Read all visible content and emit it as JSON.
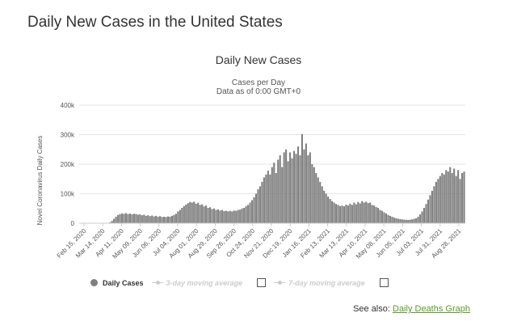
{
  "page": {
    "heading": "Daily New Cases in the United States"
  },
  "see_also": {
    "label": "See also:",
    "link_text": "Daily Deaths Graph"
  },
  "legend": {
    "daily_cases": "Daily Cases",
    "moving3": "3-day moving average",
    "moving7": "7-day moving average"
  },
  "colors": {
    "bar": "#7f7f7f",
    "grid": "#e6e6e6",
    "link": "#5b9a2b",
    "inactive": "#cccccc"
  },
  "chart_data": {
    "type": "bar",
    "title": "Daily New Cases",
    "subtitle": "Cases per Day",
    "subtitle2": "Data as of 0:00 GMT+0",
    "ylabel": "Novel Coronavirus Daily Cases",
    "xlabel": "",
    "ylim": [
      0,
      400000
    ],
    "y_ticks": [
      "0",
      "100k",
      "200k",
      "300k",
      "400k"
    ],
    "y_tick_values": [
      0,
      100000,
      200000,
      300000,
      400000
    ],
    "x_tick_labels": [
      "Feb 15, 2020",
      "Mar 14, 2020",
      "Apr 11, 2020",
      "May 09, 2020",
      "Jun 06, 2020",
      "Jul 04, 2020",
      "Aug 01, 2020",
      "Aug 29, 2020",
      "Sep 26, 2020",
      "Oct 24, 2020",
      "Nov 21, 2020",
      "Dec 19, 2020",
      "Jan 16, 2021",
      "Feb 13, 2021",
      "Mar 13, 2021",
      "Apr 10, 2021",
      "May 08, 2021",
      "Jun 05, 2021",
      "Jul 03, 2021",
      "Jul 31, 2021",
      "Aug 28, 2021"
    ],
    "grid": true,
    "legend_position": "bottom",
    "series": [
      {
        "name": "Daily Cases",
        "x_start": "Feb 15, 2020",
        "x_step_days": 2,
        "values": [
          0,
          0,
          0,
          0,
          0,
          0,
          0,
          0,
          0,
          0,
          0,
          0,
          0,
          0,
          1000,
          3000,
          8000,
          15000,
          22000,
          28000,
          31000,
          33000,
          32000,
          34000,
          31000,
          33000,
          30000,
          32000,
          31000,
          29000,
          30000,
          27000,
          29000,
          25000,
          27000,
          24000,
          26000,
          23000,
          25000,
          22000,
          24000,
          21000,
          22000,
          21000,
          23000,
          22000,
          25000,
          28000,
          32000,
          40000,
          45000,
          52000,
          58000,
          63000,
          68000,
          72000,
          70000,
          73000,
          66000,
          69000,
          62000,
          64000,
          57000,
          60000,
          52000,
          54000,
          48000,
          50000,
          45000,
          47000,
          43000,
          45000,
          41000,
          42000,
          40000,
          42000,
          40000,
          43000,
          42000,
          45000,
          46000,
          50000,
          52000,
          58000,
          62000,
          70000,
          78000,
          88000,
          100000,
          115000,
          125000,
          140000,
          155000,
          165000,
          178000,
          165000,
          190000,
          205000,
          170000,
          215000,
          230000,
          190000,
          240000,
          250000,
          210000,
          240000,
          220000,
          245000,
          235000,
          260000,
          230000,
          302000,
          250000,
          270000,
          230000,
          240000,
          200000,
          190000,
          170000,
          155000,
          140000,
          125000,
          110000,
          100000,
          90000,
          82000,
          75000,
          70000,
          65000,
          62000,
          58000,
          60000,
          57000,
          63000,
          60000,
          66000,
          62000,
          70000,
          64000,
          72000,
          67000,
          75000,
          70000,
          73000,
          68000,
          70000,
          62000,
          60000,
          55000,
          52000,
          45000,
          42000,
          37000,
          33000,
          28000,
          25000,
          22000,
          19000,
          17000,
          15000,
          14000,
          13000,
          12000,
          12000,
          11000,
          12000,
          13000,
          15000,
          17000,
          22000,
          30000,
          40000,
          52000,
          65000,
          80000,
          95000,
          110000,
          125000,
          140000,
          150000,
          160000,
          170000,
          165000,
          180000,
          175000,
          190000,
          170000,
          185000,
          160000,
          180000,
          150000,
          170000,
          175000
        ]
      }
    ]
  }
}
